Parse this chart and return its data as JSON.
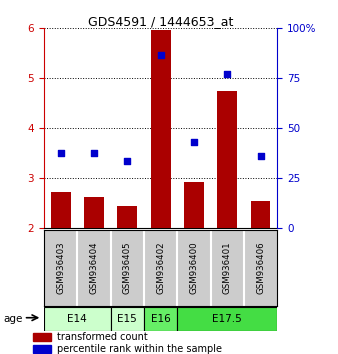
{
  "title": "GDS4591 / 1444653_at",
  "samples": [
    "GSM936403",
    "GSM936404",
    "GSM936405",
    "GSM936402",
    "GSM936400",
    "GSM936401",
    "GSM936406"
  ],
  "bar_values": [
    2.72,
    2.63,
    2.45,
    5.97,
    2.93,
    4.75,
    2.55
  ],
  "dot_values": [
    3.5,
    3.5,
    3.35,
    5.47,
    3.73,
    5.08,
    3.45
  ],
  "ylim": [
    2.0,
    6.0
  ],
  "yticks_left": [
    2,
    3,
    4,
    5,
    6
  ],
  "yticks_right": [
    0,
    25,
    50,
    75,
    100
  ],
  "bar_color": "#aa0000",
  "dot_color": "#0000cc",
  "sample_bg": "#cccccc",
  "age_groups": [
    {
      "label": "E14",
      "start": 0,
      "end": 1,
      "color": "#ccffcc"
    },
    {
      "label": "E15",
      "start": 2,
      "end": 2,
      "color": "#ccffcc"
    },
    {
      "label": "E16",
      "start": 3,
      "end": 3,
      "color": "#66ee66"
    },
    {
      "label": "E17.5",
      "start": 4,
      "end": 6,
      "color": "#44dd44"
    }
  ],
  "ylabel_left_color": "#cc0000",
  "ylabel_right_color": "#0000cc"
}
